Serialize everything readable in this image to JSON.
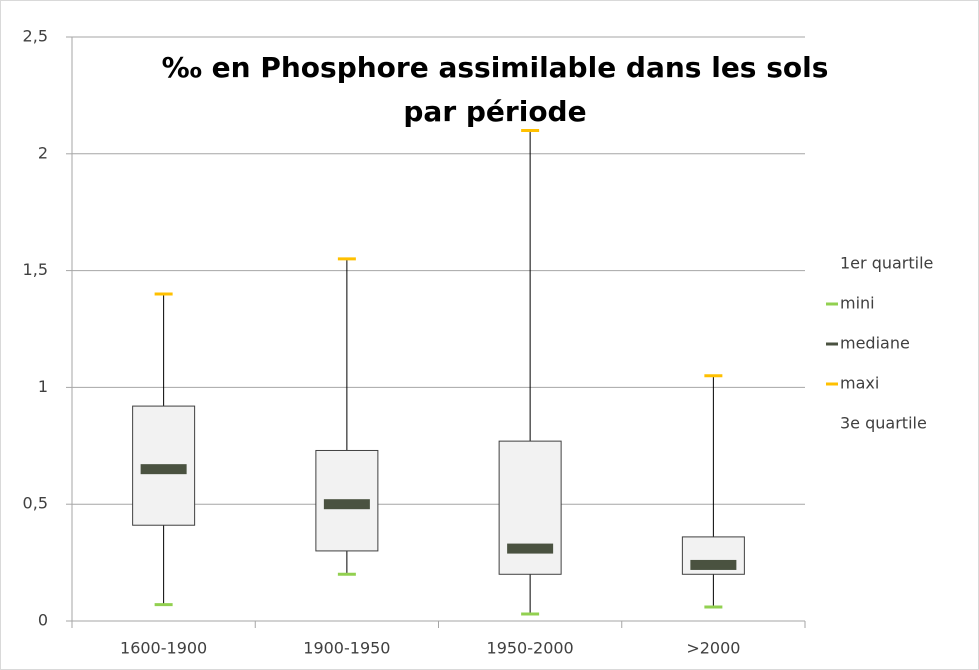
{
  "chart_data": {
    "type": "box",
    "title": "‰ en Phosphore assimilable dans les sols par période",
    "categories": [
      "1600-1900",
      "1900-1950",
      "1950-2000",
      ">2000"
    ],
    "series": [
      {
        "name": "1er quartile",
        "values": [
          0.41,
          0.3,
          0.2,
          0.2
        ]
      },
      {
        "name": "mini",
        "color": "#92d050",
        "values": [
          0.07,
          0.2,
          0.03,
          0.06
        ]
      },
      {
        "name": "mediane",
        "color": "#4a5240",
        "values": [
          0.65,
          0.5,
          0.31,
          0.24
        ]
      },
      {
        "name": "maxi",
        "color": "#ffc000",
        "values": [
          1.4,
          1.55,
          2.1,
          1.05
        ]
      },
      {
        "name": "3e quartile",
        "values": [
          0.92,
          0.73,
          0.77,
          0.36
        ]
      }
    ],
    "ylim": [
      0,
      2.5
    ],
    "yticks": [
      0,
      {
        "value": 0.5,
        "label": "0,5"
      },
      1,
      {
        "value": 1.5,
        "label": "1,5"
      },
      2,
      {
        "value": 2.5,
        "label": "2,5"
      }
    ],
    "grid": true
  }
}
